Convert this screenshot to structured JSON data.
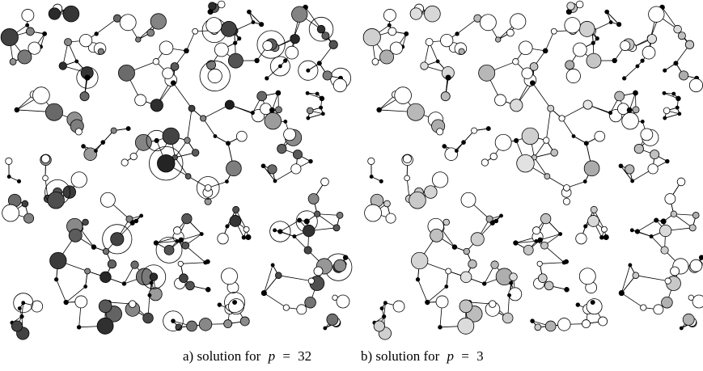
{
  "panels": [
    {
      "prefix": "a) solution for",
      "variable": "p",
      "relation": "=",
      "value": 32
    },
    {
      "prefix": "b) solution for",
      "variable": "p",
      "relation": "=",
      "value": 3
    }
  ]
}
